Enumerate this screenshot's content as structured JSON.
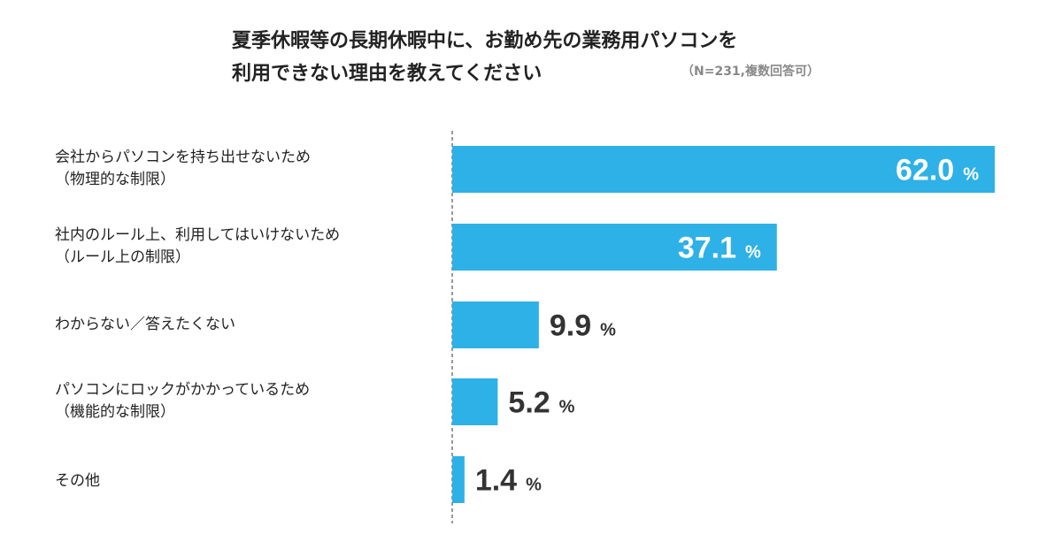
{
  "title": {
    "line1": "夏季休暇等の長期休暇中に、お勤め先の業務用パソコンを",
    "line2": "利用できない理由を教えてください"
  },
  "note": "（N=231,複数回答可）",
  "chart_data": {
    "type": "bar",
    "orientation": "horizontal",
    "categories": [
      [
        "会社からパソコンを持ち出せないため",
        "（物理的な制限）"
      ],
      [
        "社内のルール上、利用してはいけないため",
        "（ルール上の制限）"
      ],
      [
        "わからない／答えたくない"
      ],
      [
        "パソコンにロックがかかっているため",
        "（機能的な制限）"
      ],
      [
        "その他"
      ]
    ],
    "values": [
      62.0,
      37.1,
      9.9,
      5.2,
      1.4
    ],
    "value_labels": [
      "62.0",
      "37.1",
      "9.9",
      "5.2",
      "1.4"
    ],
    "unit": "%",
    "xlim": [
      0,
      62.0
    ],
    "bar_color": "#2eb1e6",
    "grid": false,
    "legend": "none"
  }
}
